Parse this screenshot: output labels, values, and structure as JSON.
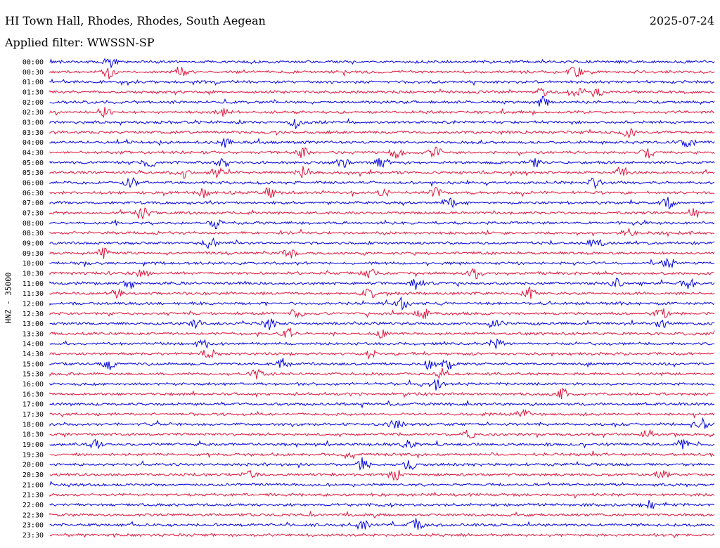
{
  "header": {
    "station": "HI Town Hall, Rhodes, Rhodes, South Aegean",
    "date": "2025-07-24",
    "filter": "Applied filter: WWSSN-SP"
  },
  "chart_data": {
    "type": "line",
    "title": "HI Town Hall, Rhodes, Rhodes, South Aegean",
    "ylabel": "HNZ - 35000",
    "xlabel": "",
    "grid": false,
    "colors": [
      "#0000e0",
      "#e0143c"
    ],
    "rows": [
      {
        "time": "00:00",
        "events": [
          0.09
        ]
      },
      {
        "time": "00:30",
        "events": [
          0.09,
          0.2,
          0.79
        ]
      },
      {
        "time": "01:00",
        "events": []
      },
      {
        "time": "01:30",
        "events": [
          0.74,
          0.79,
          0.82
        ]
      },
      {
        "time": "02:00",
        "events": [
          0.74
        ]
      },
      {
        "time": "02:30",
        "events": [
          0.08,
          0.26
        ]
      },
      {
        "time": "03:00",
        "events": [
          0.37
        ]
      },
      {
        "time": "03:30",
        "events": [
          0.87
        ]
      },
      {
        "time": "04:00",
        "events": [
          0.26,
          0.96
        ]
      },
      {
        "time": "04:30",
        "events": [
          0.38,
          0.52,
          0.58,
          0.9
        ]
      },
      {
        "time": "05:00",
        "events": [
          0.15,
          0.26,
          0.44,
          0.5,
          0.73
        ]
      },
      {
        "time": "05:30",
        "events": [
          0.2,
          0.25,
          0.38,
          0.86
        ]
      },
      {
        "time": "06:00",
        "events": [
          0.12,
          0.82
        ]
      },
      {
        "time": "06:30",
        "events": [
          0.23,
          0.33,
          0.5,
          0.58
        ]
      },
      {
        "time": "07:00",
        "events": [
          0.6,
          0.93
        ]
      },
      {
        "time": "07:30",
        "events": [
          0.14,
          0.97
        ]
      },
      {
        "time": "08:00",
        "events": [
          0.25
        ]
      },
      {
        "time": "08:30",
        "events": [
          0.87
        ]
      },
      {
        "time": "09:00",
        "events": [
          0.24,
          0.82
        ]
      },
      {
        "time": "09:30",
        "events": [
          0.08,
          0.36
        ]
      },
      {
        "time": "10:00",
        "events": [
          0.93
        ]
      },
      {
        "time": "10:30",
        "events": [
          0.14,
          0.48,
          0.64
        ]
      },
      {
        "time": "11:00",
        "events": [
          0.12,
          0.55,
          0.85,
          0.96
        ]
      },
      {
        "time": "11:30",
        "events": [
          0.1,
          0.48,
          0.72
        ]
      },
      {
        "time": "12:00",
        "events": [
          0.53
        ]
      },
      {
        "time": "12:30",
        "events": [
          0.37,
          0.56,
          0.92
        ]
      },
      {
        "time": "13:00",
        "events": [
          0.22,
          0.33,
          0.67,
          0.92
        ]
      },
      {
        "time": "13:30",
        "events": [
          0.36,
          0.5
        ]
      },
      {
        "time": "14:00",
        "events": [
          0.23,
          0.67
        ]
      },
      {
        "time": "14:30",
        "events": [
          0.24,
          0.48
        ]
      },
      {
        "time": "15:00",
        "events": [
          0.09,
          0.35,
          0.57,
          0.6
        ]
      },
      {
        "time": "15:30",
        "events": [
          0.31,
          0.59
        ]
      },
      {
        "time": "16:00",
        "events": [
          0.58
        ]
      },
      {
        "time": "16:30",
        "events": [
          0.77
        ]
      },
      {
        "time": "17:00",
        "events": []
      },
      {
        "time": "17:30",
        "events": [
          0.71
        ]
      },
      {
        "time": "18:00",
        "events": [
          0.52,
          0.98
        ]
      },
      {
        "time": "18:30",
        "events": [
          0.63,
          0.9
        ]
      },
      {
        "time": "19:00",
        "events": [
          0.07,
          0.54,
          0.95
        ]
      },
      {
        "time": "19:30",
        "events": [
          0.45
        ]
      },
      {
        "time": "20:00",
        "events": [
          0.47,
          0.54
        ]
      },
      {
        "time": "20:30",
        "events": [
          0.3,
          0.52,
          0.92
        ]
      },
      {
        "time": "21:00",
        "events": []
      },
      {
        "time": "21:30",
        "events": []
      },
      {
        "time": "22:00",
        "events": [
          0.9
        ]
      },
      {
        "time": "22:30",
        "events": []
      },
      {
        "time": "23:00",
        "events": [
          0.47,
          0.55
        ]
      },
      {
        "time": "23:30",
        "events": []
      }
    ]
  }
}
